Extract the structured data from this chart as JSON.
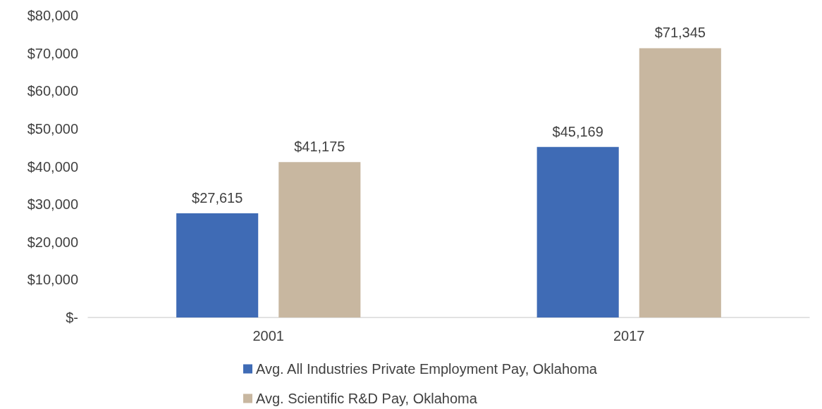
{
  "chart_data": {
    "type": "bar",
    "categories": [
      "2001",
      "2017"
    ],
    "series": [
      {
        "name": "Avg. All Industries Private Employment Pay, Oklahoma",
        "color": "#3f6bb5",
        "values": [
          27615,
          45169
        ],
        "value_labels": [
          "$27,615",
          "$45,169"
        ]
      },
      {
        "name": "Avg. Scientific R&D Pay, Oklahoma",
        "color": "#c8b7a0",
        "values": [
          41175,
          71345
        ],
        "value_labels": [
          "$41,175",
          "$71,345"
        ]
      }
    ],
    "ylim": [
      0,
      80000
    ],
    "yticks": [
      {
        "value": 0,
        "label": "$-"
      },
      {
        "value": 10000,
        "label": "$10,000"
      },
      {
        "value": 20000,
        "label": "$20,000"
      },
      {
        "value": 30000,
        "label": "$30,000"
      },
      {
        "value": 40000,
        "label": "$40,000"
      },
      {
        "value": 50000,
        "label": "$50,000"
      },
      {
        "value": 60000,
        "label": "$60,000"
      },
      {
        "value": 70000,
        "label": "$70,000"
      },
      {
        "value": 80000,
        "label": "$80,000"
      }
    ],
    "grid": false,
    "legend": "bottom"
  }
}
